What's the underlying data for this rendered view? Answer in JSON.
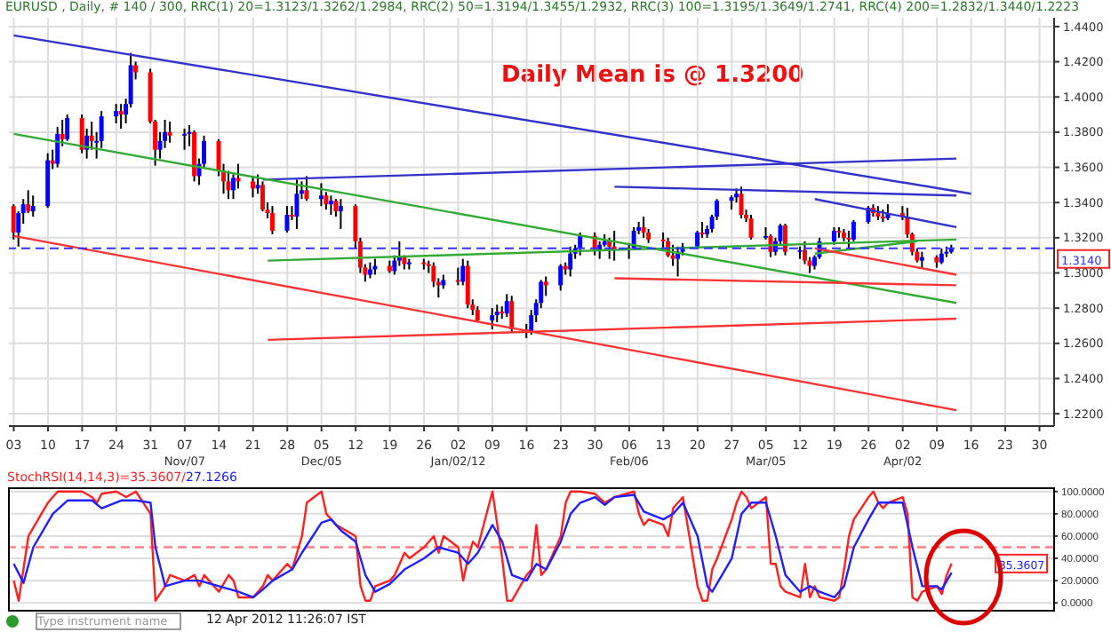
{
  "chart_data": [
    {
      "type": "candlestick",
      "title": "EURUSD , Daily, # 140 / 300, RRC(1) 20=1.3123/1.3262/1.2984, RRC(2) 50=1.3194/1.3455/1.2932, RRC(3) 100=1.3195/1.3649/1.2741, RRC(4) 200=1.2832/1.3440/1.2223",
      "x": [
        "2011-10-03",
        "2011-10-04",
        "2011-10-05",
        "2011-10-06",
        "2011-10-07",
        "2011-10-10",
        "2011-10-11",
        "2011-10-12",
        "2011-10-13",
        "2011-10-14",
        "2011-10-17",
        "2011-10-18",
        "2011-10-19",
        "2011-10-20",
        "2011-10-21",
        "2011-10-24",
        "2011-10-25",
        "2011-10-26",
        "2011-10-27",
        "2011-10-28",
        "2011-10-31",
        "2011-11-01",
        "2011-11-02",
        "2011-11-03",
        "2011-11-04",
        "2011-11-07",
        "2011-11-08",
        "2011-11-09",
        "2011-11-10",
        "2011-11-11",
        "2011-11-14",
        "2011-11-15",
        "2011-11-16",
        "2011-11-17",
        "2011-11-18",
        "2011-11-21",
        "2011-11-22",
        "2011-11-23",
        "2011-11-24",
        "2011-11-25",
        "2011-11-28",
        "2011-11-29",
        "2011-11-30",
        "2011-12-01",
        "2011-12-02",
        "2011-12-05",
        "2011-12-06",
        "2011-12-07",
        "2011-12-08",
        "2011-12-09",
        "2011-12-12",
        "2011-12-13",
        "2011-12-14",
        "2011-12-15",
        "2011-12-16",
        "2011-12-19",
        "2011-12-20",
        "2011-12-21",
        "2011-12-22",
        "2011-12-23",
        "2011-12-26",
        "2011-12-27",
        "2011-12-28",
        "2011-12-29",
        "2011-12-30",
        "2012-01-02",
        "2012-01-03",
        "2012-01-04",
        "2012-01-05",
        "2012-01-06",
        "2012-01-09",
        "2012-01-10",
        "2012-01-11",
        "2012-01-12",
        "2012-01-13",
        "2012-01-16",
        "2012-01-17",
        "2012-01-18",
        "2012-01-19",
        "2012-01-20",
        "2012-01-23",
        "2012-01-24",
        "2012-01-25",
        "2012-01-26",
        "2012-01-27",
        "2012-01-30",
        "2012-01-31",
        "2012-02-01",
        "2012-02-02",
        "2012-02-03",
        "2012-02-06",
        "2012-02-07",
        "2012-02-08",
        "2012-02-09",
        "2012-02-10",
        "2012-02-13",
        "2012-02-14",
        "2012-02-15",
        "2012-02-16",
        "2012-02-17",
        "2012-02-20",
        "2012-02-21",
        "2012-02-22",
        "2012-02-23",
        "2012-02-24",
        "2012-02-27",
        "2012-02-28",
        "2012-02-29",
        "2012-03-01",
        "2012-03-02",
        "2012-03-05",
        "2012-03-06",
        "2012-03-07",
        "2012-03-08",
        "2012-03-09",
        "2012-03-12",
        "2012-03-13",
        "2012-03-14",
        "2012-03-15",
        "2012-03-16",
        "2012-03-19",
        "2012-03-20",
        "2012-03-21",
        "2012-03-22",
        "2012-03-23",
        "2012-03-26",
        "2012-03-27",
        "2012-03-28",
        "2012-03-29",
        "2012-03-30",
        "2012-04-02",
        "2012-04-03",
        "2012-04-04",
        "2012-04-05",
        "2012-04-06",
        "2012-04-09",
        "2012-04-10",
        "2012-04-11",
        "2012-04-12"
      ],
      "ohlc": [
        [
          1.338,
          1.339,
          1.319,
          1.323
        ],
        [
          1.323,
          1.335,
          1.315,
          1.334
        ],
        [
          1.334,
          1.342,
          1.328,
          1.339
        ],
        [
          1.339,
          1.347,
          1.334,
          1.335
        ],
        [
          1.335,
          1.344,
          1.332,
          1.338
        ],
        [
          1.338,
          1.368,
          1.337,
          1.364
        ],
        [
          1.364,
          1.37,
          1.359,
          1.362
        ],
        [
          1.362,
          1.383,
          1.36,
          1.379
        ],
        [
          1.379,
          1.387,
          1.372,
          1.376
        ],
        [
          1.376,
          1.39,
          1.375,
          1.388
        ],
        [
          1.388,
          1.39,
          1.368,
          1.37
        ],
        [
          1.37,
          1.382,
          1.365,
          1.378
        ],
        [
          1.378,
          1.386,
          1.37,
          1.375
        ],
        [
          1.375,
          1.38,
          1.365,
          1.375
        ],
        [
          1.375,
          1.392,
          1.371,
          1.389
        ],
        [
          1.389,
          1.396,
          1.385,
          1.392
        ],
        [
          1.392,
          1.396,
          1.382,
          1.39
        ],
        [
          1.39,
          1.399,
          1.385,
          1.396
        ],
        [
          1.396,
          1.425,
          1.394,
          1.418
        ],
        [
          1.418,
          1.42,
          1.41,
          1.414
        ],
        [
          1.414,
          1.416,
          1.385,
          1.386
        ],
        [
          1.386,
          1.387,
          1.361,
          1.37
        ],
        [
          1.37,
          1.38,
          1.365,
          1.375
        ],
        [
          1.375,
          1.387,
          1.371,
          1.38
        ],
        [
          1.38,
          1.386,
          1.374,
          1.378
        ],
        [
          1.378,
          1.382,
          1.37,
          1.379
        ],
        [
          1.379,
          1.384,
          1.372,
          1.38
        ],
        [
          1.38,
          1.381,
          1.352,
          1.355
        ],
        [
          1.355,
          1.365,
          1.35,
          1.362
        ],
        [
          1.362,
          1.378,
          1.36,
          1.375
        ],
        [
          1.375,
          1.376,
          1.355,
          1.358
        ],
        [
          1.358,
          1.362,
          1.345,
          1.352
        ],
        [
          1.352,
          1.358,
          1.342,
          1.347
        ],
        [
          1.347,
          1.356,
          1.342,
          1.354
        ],
        [
          1.354,
          1.362,
          1.348,
          1.352
        ],
        [
          1.352,
          1.355,
          1.343,
          1.348
        ],
        [
          1.348,
          1.356,
          1.345,
          1.35
        ],
        [
          1.35,
          1.352,
          1.335,
          1.336
        ],
        [
          1.336,
          1.34,
          1.331,
          1.334
        ],
        [
          1.334,
          1.338,
          1.322,
          1.324
        ],
        [
          1.324,
          1.338,
          1.323,
          1.333
        ],
        [
          1.333,
          1.338,
          1.33,
          1.332
        ],
        [
          1.332,
          1.353,
          1.325,
          1.345
        ],
        [
          1.345,
          1.352,
          1.342,
          1.347
        ],
        [
          1.347,
          1.355,
          1.341,
          1.342
        ],
        [
          1.342,
          1.351,
          1.338,
          1.344
        ],
        [
          1.344,
          1.346,
          1.336,
          1.339
        ],
        [
          1.339,
          1.344,
          1.333,
          1.341
        ],
        [
          1.341,
          1.342,
          1.332,
          1.335
        ],
        [
          1.335,
          1.342,
          1.325,
          1.338
        ],
        [
          1.338,
          1.339,
          1.314,
          1.318
        ],
        [
          1.318,
          1.32,
          1.3,
          1.303
        ],
        [
          1.303,
          1.305,
          1.295,
          1.299
        ],
        [
          1.299,
          1.306,
          1.297,
          1.302
        ],
        [
          1.302,
          1.308,
          1.299,
          1.304
        ],
        [
          1.304,
          1.307,
          1.3,
          1.301
        ],
        [
          1.301,
          1.31,
          1.299,
          1.307
        ],
        [
          1.307,
          1.318,
          1.304,
          1.309
        ],
        [
          1.309,
          1.31,
          1.302,
          1.305
        ],
        [
          1.305,
          1.308,
          1.302,
          1.306
        ],
        [
          1.306,
          1.308,
          1.302,
          1.305
        ],
        [
          1.305,
          1.307,
          1.3,
          1.304
        ],
        [
          1.304,
          1.306,
          1.292,
          1.295
        ],
        [
          1.295,
          1.297,
          1.286,
          1.293
        ],
        [
          1.293,
          1.299,
          1.291,
          1.296
        ],
        [
          1.296,
          1.303,
          1.293,
          1.295
        ],
        [
          1.295,
          1.308,
          1.293,
          1.304
        ],
        [
          1.304,
          1.307,
          1.28,
          1.282
        ],
        [
          1.282,
          1.285,
          1.276,
          1.279
        ],
        [
          1.279,
          1.281,
          1.272,
          1.273
        ],
        [
          1.273,
          1.28,
          1.268,
          1.276
        ],
        [
          1.276,
          1.282,
          1.272,
          1.278
        ],
        [
          1.278,
          1.281,
          1.274,
          1.277
        ],
        [
          1.277,
          1.288,
          1.275,
          1.284
        ],
        [
          1.284,
          1.287,
          1.266,
          1.268
        ],
        [
          1.268,
          1.271,
          1.263,
          1.266
        ],
        [
          1.266,
          1.279,
          1.265,
          1.276
        ],
        [
          1.276,
          1.285,
          1.272,
          1.283
        ],
        [
          1.283,
          1.296,
          1.28,
          1.295
        ],
        [
          1.295,
          1.298,
          1.287,
          1.293
        ],
        [
          1.293,
          1.305,
          1.29,
          1.304
        ],
        [
          1.304,
          1.306,
          1.299,
          1.302
        ],
        [
          1.302,
          1.315,
          1.298,
          1.311
        ],
        [
          1.311,
          1.316,
          1.308,
          1.314
        ],
        [
          1.314,
          1.323,
          1.31,
          1.321
        ],
        [
          1.321,
          1.323,
          1.31,
          1.313
        ],
        [
          1.313,
          1.318,
          1.308,
          1.316
        ],
        [
          1.316,
          1.322,
          1.315,
          1.318
        ],
        [
          1.318,
          1.32,
          1.308,
          1.315
        ],
        [
          1.315,
          1.324,
          1.307,
          1.313
        ],
        [
          1.313,
          1.317,
          1.308,
          1.314
        ],
        [
          1.314,
          1.326,
          1.313,
          1.324
        ],
        [
          1.324,
          1.329,
          1.322,
          1.326
        ],
        [
          1.326,
          1.332,
          1.32,
          1.323
        ],
        [
          1.323,
          1.325,
          1.317,
          1.319
        ],
        [
          1.319,
          1.323,
          1.314,
          1.318
        ],
        [
          1.318,
          1.32,
          1.309,
          1.31
        ],
        [
          1.31,
          1.316,
          1.304,
          1.308
        ],
        [
          1.308,
          1.315,
          1.298,
          1.312
        ],
        [
          1.312,
          1.317,
          1.31,
          1.315
        ],
        [
          1.315,
          1.324,
          1.314,
          1.323
        ],
        [
          1.323,
          1.329,
          1.32,
          1.322
        ],
        [
          1.322,
          1.327,
          1.32,
          1.325
        ],
        [
          1.325,
          1.333,
          1.323,
          1.332
        ],
        [
          1.332,
          1.342,
          1.33,
          1.341
        ],
        [
          1.341,
          1.344,
          1.336,
          1.343
        ],
        [
          1.343,
          1.348,
          1.34,
          1.345
        ],
        [
          1.345,
          1.349,
          1.331,
          1.333
        ],
        [
          1.333,
          1.336,
          1.329,
          1.331
        ],
        [
          1.331,
          1.333,
          1.319,
          1.32
        ],
        [
          1.32,
          1.326,
          1.319,
          1.321
        ],
        [
          1.321,
          1.322,
          1.309,
          1.312
        ],
        [
          1.312,
          1.32,
          1.31,
          1.318
        ],
        [
          1.318,
          1.328,
          1.316,
          1.327
        ],
        [
          1.327,
          1.328,
          1.31,
          1.312
        ],
        [
          1.312,
          1.315,
          1.308,
          1.313
        ],
        [
          1.313,
          1.318,
          1.305,
          1.307
        ],
        [
          1.307,
          1.309,
          1.3,
          1.304
        ],
        [
          1.304,
          1.31,
          1.302,
          1.309
        ],
        [
          1.309,
          1.32,
          1.308,
          1.318
        ],
        [
          1.318,
          1.326,
          1.316,
          1.324
        ],
        [
          1.324,
          1.326,
          1.32,
          1.323
        ],
        [
          1.323,
          1.325,
          1.318,
          1.32
        ],
        [
          1.32,
          1.324,
          1.314,
          1.319
        ],
        [
          1.319,
          1.33,
          1.318,
          1.329
        ],
        [
          1.329,
          1.338,
          1.328,
          1.337
        ],
        [
          1.337,
          1.339,
          1.332,
          1.334
        ],
        [
          1.334,
          1.338,
          1.33,
          1.332
        ],
        [
          1.332,
          1.336,
          1.329,
          1.331
        ],
        [
          1.331,
          1.339,
          1.33,
          1.334
        ],
        [
          1.334,
          1.338,
          1.33,
          1.332
        ],
        [
          1.332,
          1.337,
          1.32,
          1.322
        ],
        [
          1.322,
          1.323,
          1.31,
          1.312
        ],
        [
          1.312,
          1.314,
          1.306,
          1.307
        ],
        [
          1.307,
          1.312,
          1.303,
          1.309
        ],
        [
          1.309,
          1.31,
          1.303,
          1.306
        ],
        [
          1.306,
          1.314,
          1.305,
          1.311
        ],
        [
          1.311,
          1.315,
          1.309,
          1.312
        ],
        [
          1.312,
          1.316,
          1.311,
          1.314
        ]
      ],
      "colors": [
        "#ff0000",
        "#0000ff",
        "#0000ff",
        "#ff0000",
        "#0000ff",
        "#0000ff",
        "#ff0000",
        "#0000ff",
        "#ff0000",
        "#0000ff",
        "#ff0000",
        "#0000ff",
        "#ff0000",
        "#0000ff",
        "#0000ff",
        "#0000ff",
        "#ff0000",
        "#0000ff",
        "#0000ff",
        "#ff0000",
        "#ff0000",
        "#ff0000",
        "#0000ff",
        "#0000ff",
        "#ff0000",
        "#0000ff",
        "#0000ff",
        "#ff0000",
        "#0000ff",
        "#0000ff",
        "#ff0000",
        "#ff0000",
        "#ff0000",
        "#0000ff",
        "#ff0000",
        "#ff0000",
        "#0000ff",
        "#ff0000",
        "#ff0000",
        "#ff0000",
        "#0000ff",
        "#ff0000",
        "#0000ff",
        "#0000ff",
        "#ff0000",
        "#0000ff",
        "#ff0000",
        "#0000ff",
        "#ff0000",
        "#0000ff",
        "#ff0000",
        "#ff0000",
        "#ff0000",
        "#0000ff",
        "#0000ff",
        "#ff0000",
        "#0000ff",
        "#0000ff",
        "#ff0000",
        "#0000ff",
        "#ff0000",
        "#ff0000",
        "#ff0000",
        "#ff0000",
        "#0000ff",
        "#ff0000",
        "#0000ff",
        "#ff0000",
        "#ff0000",
        "#ff0000",
        "#0000ff",
        "#0000ff",
        "#ff0000",
        "#0000ff",
        "#ff0000",
        "#ff0000",
        "#0000ff",
        "#0000ff",
        "#0000ff",
        "#ff0000",
        "#0000ff",
        "#ff0000",
        "#0000ff",
        "#0000ff",
        "#0000ff",
        "#ff0000",
        "#0000ff",
        "#0000ff",
        "#ff0000",
        "#ff0000",
        "#0000ff",
        "#0000ff",
        "#0000ff",
        "#ff0000",
        "#ff0000",
        "#ff0000",
        "#ff0000",
        "#ff0000",
        "#0000ff",
        "#0000ff",
        "#0000ff",
        "#ff0000",
        "#0000ff",
        "#0000ff",
        "#0000ff",
        "#0000ff",
        "#0000ff",
        "#ff0000",
        "#ff0000",
        "#ff0000",
        "#0000ff",
        "#ff0000",
        "#0000ff",
        "#0000ff",
        "#ff0000",
        "#0000ff",
        "#ff0000",
        "#ff0000",
        "#0000ff",
        "#0000ff",
        "#0000ff",
        "#ff0000",
        "#ff0000",
        "#ff0000",
        "#0000ff",
        "#0000ff",
        "#ff0000",
        "#ff0000",
        "#ff0000",
        "#0000ff",
        "#ff0000",
        "#ff0000",
        "#ff0000",
        "#ff0000",
        "#0000ff",
        "#ff0000",
        "#0000ff",
        "#0000ff",
        "#0000ff"
      ],
      "series": [
        {
          "type": "line",
          "color": "#3333cc",
          "x": [
            "2011-10-03",
            "2012-04-16"
          ],
          "values": [
            1.435,
            1.345
          ]
        },
        {
          "type": "line",
          "color": "#3333cc",
          "x": [
            "2011-11-23",
            "2012-04-13"
          ],
          "values": [
            1.353,
            1.365
          ]
        },
        {
          "type": "line",
          "color": "#3333cc",
          "x": [
            "2012-02-03",
            "2012-04-13"
          ],
          "values": [
            1.349,
            1.344
          ]
        },
        {
          "type": "line",
          "color": "#3333cc",
          "x": [
            "2012-03-15",
            "2012-04-13"
          ],
          "values": [
            1.342,
            1.326
          ]
        },
        {
          "type": "line",
          "color": "#33aa33",
          "x": [
            "2011-10-03",
            "2012-04-13"
          ],
          "values": [
            1.379,
            1.283
          ]
        },
        {
          "type": "line",
          "color": "#33aa33",
          "x": [
            "2011-11-24",
            "2012-04-13"
          ],
          "values": [
            1.307,
            1.319
          ]
        },
        {
          "type": "line",
          "color": "#33aa33",
          "x": [
            "2012-03-15",
            "2012-04-05"
          ],
          "values": [
            1.311,
            1.318
          ]
        },
        {
          "type": "line",
          "color": "#ff3333",
          "x": [
            "2011-10-03",
            "2012-04-13"
          ],
          "values": [
            1.321,
            1.222
          ]
        },
        {
          "type": "line",
          "color": "#ff3333",
          "x": [
            "2011-11-24",
            "2012-04-13"
          ],
          "values": [
            1.262,
            1.274
          ]
        },
        {
          "type": "line",
          "color": "#ff3333",
          "x": [
            "2012-02-03",
            "2012-04-13"
          ],
          "values": [
            1.297,
            1.293
          ]
        },
        {
          "type": "line",
          "color": "#ff3333",
          "x": [
            "2012-03-15",
            "2012-04-13"
          ],
          "values": [
            1.314,
            1.299
          ]
        }
      ],
      "xlim": [
        "2011-10-02",
        "2012-05-03"
      ],
      "xticks": [
        {
          "value": "2011-10-03",
          "label": "03"
        },
        {
          "value": "2011-10-10",
          "label": "10"
        },
        {
          "value": "2011-10-17",
          "label": "17"
        },
        {
          "value": "2011-10-24",
          "label": "24"
        },
        {
          "value": "2011-10-31",
          "label": "31"
        },
        {
          "value": "2011-11-07",
          "label": "07\nNov/07"
        },
        {
          "value": "2011-11-14",
          "label": "14"
        },
        {
          "value": "2011-11-21",
          "label": "21"
        },
        {
          "value": "2011-11-28",
          "label": "28"
        },
        {
          "value": "2011-12-05",
          "label": "05\nDec/05"
        },
        {
          "value": "2011-12-12",
          "label": "12"
        },
        {
          "value": "2011-12-19",
          "label": "19"
        },
        {
          "value": "2011-12-26",
          "label": "26"
        },
        {
          "value": "2012-01-02",
          "label": "02\nJan/02/12"
        },
        {
          "value": "2012-01-09",
          "label": "09"
        },
        {
          "value": "2012-01-16",
          "label": "16"
        },
        {
          "value": "2012-01-23",
          "label": "23"
        },
        {
          "value": "2012-01-30",
          "label": "30"
        },
        {
          "value": "2012-02-06",
          "label": "06\nFeb/06"
        },
        {
          "value": "2012-02-13",
          "label": "13"
        },
        {
          "value": "2012-02-20",
          "label": "20"
        },
        {
          "value": "2012-02-27",
          "label": "27"
        },
        {
          "value": "2012-03-05",
          "label": "05\nMar/05"
        },
        {
          "value": "2012-03-12",
          "label": "12"
        },
        {
          "value": "2012-03-19",
          "label": "19"
        },
        {
          "value": "2012-03-26",
          "label": "26"
        },
        {
          "value": "2012-04-02",
          "label": "02\nApr/02"
        },
        {
          "value": "2012-04-09",
          "label": "09"
        },
        {
          "value": "2012-04-16",
          "label": "16"
        },
        {
          "value": "2012-04-23",
          "label": "23"
        },
        {
          "value": "2012-04-30",
          "label": "30"
        }
      ],
      "ylim": [
        1.213,
        1.445
      ],
      "yticks": [
        {
          "value": 1.22,
          "label": "1.2200"
        },
        {
          "value": 1.24,
          "label": "1.2400"
        },
        {
          "value": 1.26,
          "label": "1.2600"
        },
        {
          "value": 1.28,
          "label": "1.2800"
        },
        {
          "value": 1.3,
          "label": "1.3000"
        },
        {
          "value": 1.32,
          "label": "1.3200"
        },
        {
          "value": 1.34,
          "label": "1.3400"
        },
        {
          "value": 1.36,
          "label": "1.3600"
        },
        {
          "value": 1.38,
          "label": "1.3800"
        },
        {
          "value": 1.4,
          "label": "1.4000"
        },
        {
          "value": 1.42,
          "label": "1.4200"
        },
        {
          "value": 1.44,
          "label": "1.4400"
        }
      ],
      "ref_lines": [
        {
          "axis": "y",
          "value": 1.314,
          "label": "1.3140",
          "color": "#3333ff",
          "line_style": "dashed"
        }
      ],
      "annotations": [
        "Daily Mean is @ 1.3200"
      ],
      "grid": true
    },
    {
      "type": "line",
      "legend": "top left",
      "tick_labels": "y",
      "grid": true,
      "series": [
        {
          "name": "StochRSI(14,14,3)=35.3607/",
          "color": "#ff2020",
          "x": [
            "2011-10-03",
            "2011-10-04",
            "2011-10-06",
            "2011-10-10",
            "2011-10-12",
            "2011-10-17",
            "2011-10-19",
            "2011-10-20",
            "2011-10-21",
            "2011-10-24",
            "2011-10-26",
            "2011-10-28",
            "2011-10-31",
            "2011-11-01",
            "2011-11-03",
            "2011-11-04",
            "2011-11-07",
            "2011-11-09",
            "2011-11-10",
            "2011-11-11",
            "2011-11-14",
            "2011-11-16",
            "2011-11-17",
            "2011-11-18",
            "2011-11-21",
            "2011-11-23",
            "2011-11-24",
            "2011-11-25",
            "2011-11-28",
            "2011-11-29",
            "2011-12-01",
            "2011-12-02",
            "2011-12-05",
            "2011-12-06",
            "2011-12-08",
            "2011-12-12",
            "2011-12-13",
            "2011-12-14",
            "2011-12-15",
            "2011-12-16",
            "2011-12-19",
            "2011-12-20",
            "2011-12-22",
            "2011-12-23",
            "2011-12-26",
            "2011-12-28",
            "2011-12-29",
            "2011-12-30",
            "2012-01-02",
            "2012-01-03",
            "2012-01-04",
            "2012-01-05",
            "2012-01-06",
            "2012-01-09",
            "2012-01-10",
            "2012-01-11",
            "2012-01-12",
            "2012-01-13",
            "2012-01-16",
            "2012-01-17",
            "2012-01-18",
            "2012-01-19",
            "2012-01-20",
            "2012-01-23",
            "2012-01-24",
            "2012-01-25",
            "2012-01-27",
            "2012-01-30",
            "2012-02-01",
            "2012-02-03",
            "2012-02-07",
            "2012-02-08",
            "2012-02-09",
            "2012-02-10",
            "2012-02-13",
            "2012-02-14",
            "2012-02-15",
            "2012-02-17",
            "2012-02-20",
            "2012-02-21",
            "2012-02-22",
            "2012-02-23",
            "2012-02-24",
            "2012-02-27",
            "2012-02-28",
            "2012-02-29",
            "2012-03-01",
            "2012-03-02",
            "2012-03-05",
            "2012-03-06",
            "2012-03-07",
            "2012-03-08",
            "2012-03-09",
            "2012-03-12",
            "2012-03-13",
            "2012-03-14",
            "2012-03-15",
            "2012-03-16",
            "2012-03-19",
            "2012-03-20",
            "2012-03-21",
            "2012-03-22",
            "2012-03-23",
            "2012-03-26",
            "2012-03-27",
            "2012-03-28",
            "2012-03-29",
            "2012-03-30",
            "2012-04-02",
            "2012-04-03",
            "2012-04-04",
            "2012-04-05",
            "2012-04-06",
            "2012-04-09",
            "2012-04-10",
            "2012-04-11",
            "2012-04-12"
          ],
          "values": [
            20,
            2,
            60,
            90,
            100,
            100,
            95,
            90,
            98,
            100,
            95,
            100,
            80,
            2,
            15,
            25,
            20,
            25,
            15,
            25,
            10,
            25,
            20,
            5,
            5,
            15,
            25,
            20,
            35,
            30,
            60,
            90,
            100,
            80,
            70,
            60,
            15,
            2,
            2,
            15,
            20,
            25,
            45,
            40,
            50,
            60,
            45,
            60,
            50,
            20,
            40,
            55,
            50,
            100,
            70,
            40,
            2,
            2,
            25,
            30,
            70,
            25,
            30,
            60,
            90,
            100,
            100,
            98,
            90,
            95,
            100,
            80,
            70,
            75,
            70,
            60,
            85,
            95,
            15,
            2,
            2,
            30,
            40,
            75,
            90,
            100,
            95,
            85,
            95,
            35,
            35,
            15,
            10,
            5,
            35,
            5,
            15,
            5,
            2,
            5,
            30,
            60,
            75,
            95,
            100,
            90,
            85,
            90,
            95,
            80,
            5,
            2,
            10,
            15,
            8,
            25,
            35.3607
          ]
        },
        {
          "name": "27.1266",
          "color": "#2020ff",
          "x": [
            "2011-10-03",
            "2011-10-05",
            "2011-10-07",
            "2011-10-11",
            "2011-10-14",
            "2011-10-19",
            "2011-10-21",
            "2011-10-25",
            "2011-10-28",
            "2011-10-31",
            "2011-11-01",
            "2011-11-03",
            "2011-11-07",
            "2011-11-10",
            "2011-11-14",
            "2011-11-18",
            "2011-11-21",
            "2011-11-23",
            "2011-11-25",
            "2011-11-29",
            "2011-12-01",
            "2011-12-05",
            "2011-12-07",
            "2011-12-09",
            "2011-12-12",
            "2011-12-14",
            "2011-12-16",
            "2011-12-19",
            "2011-12-22",
            "2011-12-26",
            "2011-12-29",
            "2012-01-02",
            "2012-01-04",
            "2012-01-06",
            "2012-01-09",
            "2012-01-11",
            "2012-01-13",
            "2012-01-16",
            "2012-01-18",
            "2012-01-20",
            "2012-01-23",
            "2012-01-25",
            "2012-01-27",
            "2012-01-30",
            "2012-02-01",
            "2012-02-03",
            "2012-02-07",
            "2012-02-09",
            "2012-02-13",
            "2012-02-15",
            "2012-02-17",
            "2012-02-20",
            "2012-02-22",
            "2012-02-23",
            "2012-02-27",
            "2012-02-29",
            "2012-03-02",
            "2012-03-05",
            "2012-03-07",
            "2012-03-09",
            "2012-03-12",
            "2012-03-14",
            "2012-03-16",
            "2012-03-19",
            "2012-03-21",
            "2012-03-23",
            "2012-03-26",
            "2012-03-28",
            "2012-03-30",
            "2012-04-02",
            "2012-04-04",
            "2012-04-06",
            "2012-04-09",
            "2012-04-10",
            "2012-04-12"
          ],
          "values": [
            35,
            18,
            50,
            80,
            92,
            92,
            85,
            92,
            92,
            90,
            50,
            15,
            20,
            20,
            15,
            10,
            5,
            12,
            20,
            30,
            45,
            72,
            75,
            65,
            55,
            25,
            10,
            17,
            30,
            40,
            50,
            45,
            35,
            45,
            70,
            55,
            25,
            20,
            35,
            30,
            55,
            80,
            90,
            95,
            88,
            95,
            97,
            82,
            75,
            80,
            90,
            60,
            15,
            10,
            40,
            80,
            90,
            90,
            60,
            25,
            10,
            15,
            10,
            5,
            15,
            50,
            75,
            90,
            90,
            90,
            50,
            15,
            15,
            12,
            27.1266
          ]
        }
      ],
      "xlim": [
        "2011-10-02",
        "2012-05-03"
      ],
      "xticks": [
        "2011-10-03",
        "2011-10-10",
        "2011-10-17",
        "2011-10-24",
        "2011-10-31",
        "2011-11-07",
        "2011-11-14",
        "2011-11-21",
        "2011-11-28",
        "2011-12-05",
        "2011-12-12",
        "2011-12-19",
        "2011-12-26",
        "2012-01-02",
        "2012-01-09",
        "2012-01-16",
        "2012-01-23",
        "2012-01-30",
        "2012-02-06",
        "2012-02-13",
        "2012-02-20",
        "2012-02-27",
        "2012-03-05",
        "2012-03-12",
        "2012-03-19",
        "2012-03-26",
        "2012-04-02",
        "2012-04-09",
        "2012-04-16",
        "2012-04-23",
        "2012-04-30"
      ],
      "ylim": [
        -7,
        103
      ],
      "yticks": [
        {
          "value": 0,
          "label": "0.0000"
        },
        {
          "value": 20,
          "label": "20.0000"
        },
        {
          "value": 40,
          "label": "40.0000"
        },
        {
          "value": 60,
          "label": "60.0000"
        },
        {
          "value": 80,
          "label": "80.0000"
        },
        {
          "value": 100,
          "label": "100.0000"
        }
      ],
      "ref_lines": [
        {
          "axis": "y",
          "value": 50,
          "color": "#ff8080",
          "line_style": "dashed"
        }
      ],
      "annotations": [
        "35.3607",
        "Type instrument name",
        "12 Apr 2012 11:26:07 IST"
      ]
    }
  ]
}
